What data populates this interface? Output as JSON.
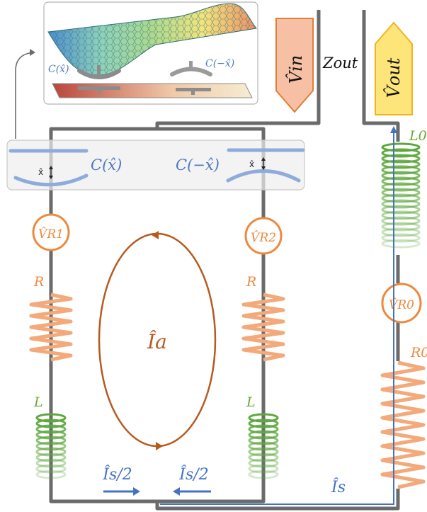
{
  "colors": {
    "wire": "#6b6b6b",
    "capacitor": "#8eabdc",
    "capacitor_text": "#4f78c0",
    "source": "#ec8a3f",
    "resistor": "#f3a979",
    "inductor": "#5da83d",
    "inductor_label": "#6aa63a",
    "current_loop": "#b85a1e",
    "current_arrow": "#4472c4",
    "vin_fill": "#f7c0a4",
    "vin_stroke": "#e07f35",
    "vout_fill": "#fde57a",
    "vout_stroke": "#f0b422",
    "panel_stroke": "#b3b3b3"
  },
  "inset": {
    "cap_pos_label": "C(x̂)",
    "cap_neg_label": "C(−x̂)"
  },
  "cap_box": {
    "cap_left_label": "C(x̂)",
    "cap_right_label": "C(−x̂)",
    "disp_left": "x̂",
    "disp_right": "x̂"
  },
  "ports": {
    "vin_label": "V̂in",
    "vout_label": "V̂out",
    "zout_label": "Zout"
  },
  "left_branch": {
    "source_label": "V̂R1",
    "resistor_label": "R",
    "inductor_label": "L"
  },
  "right_branch": {
    "source_label": "V̂R2",
    "resistor_label": "R",
    "inductor_label": "L"
  },
  "readout": {
    "source_label": "V̂R0",
    "resistor_label": "R0",
    "inductor_label": "L0"
  },
  "currents": {
    "loop_label": "Îa",
    "half_left": "Îs/2",
    "half_right": "Îs/2",
    "total": "Îs"
  },
  "icons": [
    "arrow-icon",
    "double-arrow-icon",
    "graphene-membrane-icon"
  ]
}
